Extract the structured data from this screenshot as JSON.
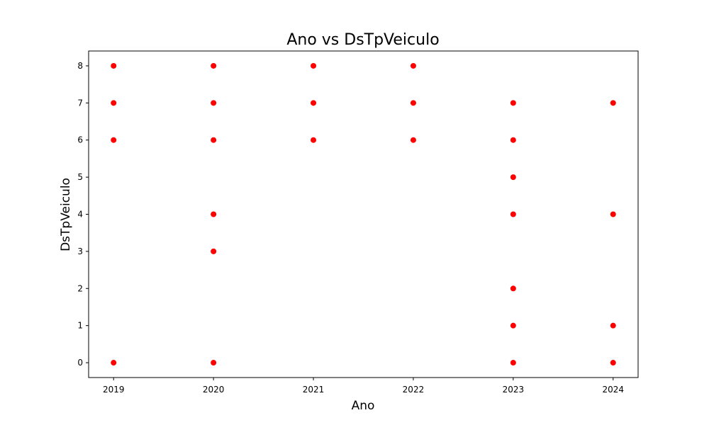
{
  "chart_data": {
    "type": "scatter",
    "title": "Ano vs DsTpVeiculo",
    "xlabel": "Ano",
    "ylabel": "DsTpVeiculo",
    "xlim": [
      2018.75,
      2024.25
    ],
    "ylim": [
      -0.4,
      8.4
    ],
    "xticks": [
      2019,
      2020,
      2021,
      2022,
      2023,
      2024
    ],
    "yticks": [
      0,
      1,
      2,
      3,
      4,
      5,
      6,
      7,
      8
    ],
    "grid": false,
    "marker_color": "#ff0000",
    "series": [
      {
        "points": [
          {
            "x": 2019,
            "y": 0
          },
          {
            "x": 2019,
            "y": 6
          },
          {
            "x": 2019,
            "y": 7
          },
          {
            "x": 2019,
            "y": 8
          },
          {
            "x": 2020,
            "y": 0
          },
          {
            "x": 2020,
            "y": 3
          },
          {
            "x": 2020,
            "y": 4
          },
          {
            "x": 2020,
            "y": 6
          },
          {
            "x": 2020,
            "y": 7
          },
          {
            "x": 2020,
            "y": 8
          },
          {
            "x": 2021,
            "y": 6
          },
          {
            "x": 2021,
            "y": 7
          },
          {
            "x": 2021,
            "y": 8
          },
          {
            "x": 2022,
            "y": 6
          },
          {
            "x": 2022,
            "y": 7
          },
          {
            "x": 2022,
            "y": 8
          },
          {
            "x": 2023,
            "y": 0
          },
          {
            "x": 2023,
            "y": 1
          },
          {
            "x": 2023,
            "y": 2
          },
          {
            "x": 2023,
            "y": 4
          },
          {
            "x": 2023,
            "y": 5
          },
          {
            "x": 2023,
            "y": 6
          },
          {
            "x": 2023,
            "y": 7
          },
          {
            "x": 2024,
            "y": 0
          },
          {
            "x": 2024,
            "y": 1
          },
          {
            "x": 2024,
            "y": 4
          },
          {
            "x": 2024,
            "y": 7
          }
        ]
      }
    ]
  }
}
